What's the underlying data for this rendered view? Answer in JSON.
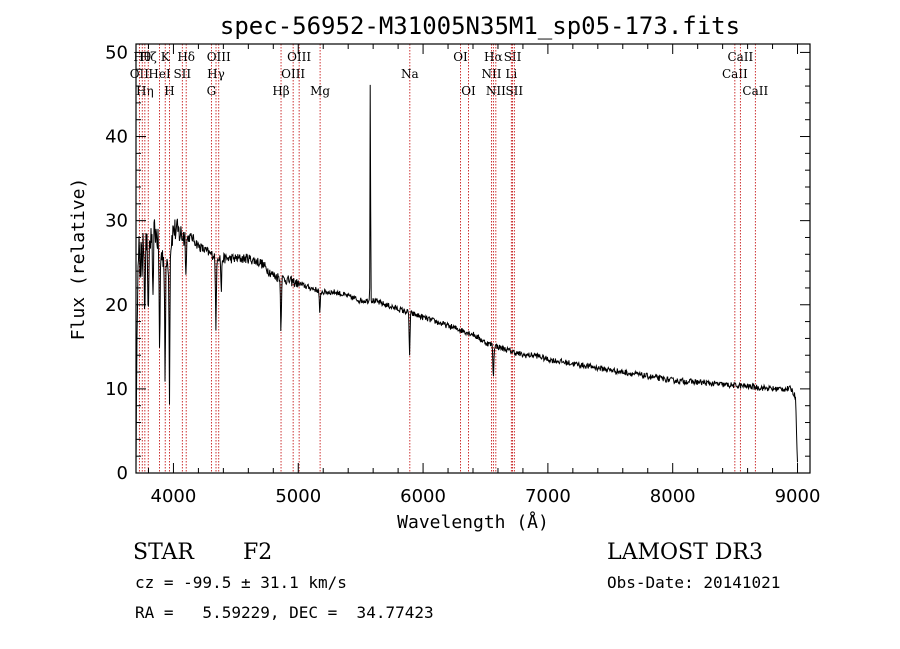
{
  "chart_data": {
    "type": "line",
    "title": "spec-56952-M31005N35M1_sp05-173.fits",
    "xlabel": "Wavelength (Å)",
    "ylabel": "Flux (relative)",
    "xlim": [
      3700,
      9100
    ],
    "ylim": [
      0,
      51
    ],
    "xticks": [
      4000,
      5000,
      6000,
      7000,
      8000,
      9000
    ],
    "yticks": [
      0,
      10,
      20,
      30,
      40,
      50
    ],
    "tick_labels_x": [
      "4000",
      "5000",
      "6000",
      "7000",
      "8000",
      "9000"
    ],
    "tick_labels_y": [
      "0",
      "10",
      "20",
      "30",
      "40",
      "50"
    ],
    "spectrum_anchors": [
      [
        3700,
        2
      ],
      [
        3715,
        26
      ],
      [
        3740,
        30
      ],
      [
        3760,
        28
      ],
      [
        3800,
        27
      ],
      [
        3850,
        29
      ],
      [
        3900,
        26
      ],
      [
        3950,
        25
      ],
      [
        4000,
        29
      ],
      [
        4050,
        28.5
      ],
      [
        4100,
        28
      ],
      [
        4150,
        28
      ],
      [
        4200,
        27
      ],
      [
        4300,
        26
      ],
      [
        4400,
        25.5
      ],
      [
        4500,
        25.5
      ],
      [
        4600,
        25.5
      ],
      [
        4700,
        25
      ],
      [
        4800,
        23.5
      ],
      [
        4900,
        23
      ],
      [
        5000,
        22.5
      ],
      [
        5100,
        22
      ],
      [
        5200,
        21.5
      ],
      [
        5300,
        21.5
      ],
      [
        5400,
        21
      ],
      [
        5500,
        20.5
      ],
      [
        5600,
        20.5
      ],
      [
        5700,
        20
      ],
      [
        5800,
        19.5
      ],
      [
        5900,
        19
      ],
      [
        6000,
        18.5
      ],
      [
        6100,
        18
      ],
      [
        6200,
        17.5
      ],
      [
        6300,
        17
      ],
      [
        6400,
        16.5
      ],
      [
        6500,
        15.5
      ],
      [
        6600,
        15
      ],
      [
        6700,
        14.5
      ],
      [
        6800,
        14
      ],
      [
        6900,
        14
      ],
      [
        7000,
        13.5
      ],
      [
        7200,
        13
      ],
      [
        7400,
        12.5
      ],
      [
        7600,
        12
      ],
      [
        7800,
        11.5
      ],
      [
        8000,
        11
      ],
      [
        8200,
        10.8
      ],
      [
        8400,
        10.5
      ],
      [
        8600,
        10.3
      ],
      [
        8800,
        10
      ],
      [
        8950,
        10
      ],
      [
        8985,
        9
      ],
      [
        9000,
        1
      ]
    ],
    "absorption_features": [
      [
        3734,
        8
      ],
      [
        3750,
        6
      ],
      [
        3770,
        8
      ],
      [
        3798,
        10
      ],
      [
        3835,
        9
      ],
      [
        3889,
        13
      ],
      [
        3933,
        14
      ],
      [
        3968,
        17
      ],
      [
        4101,
        4
      ],
      [
        4340,
        9
      ],
      [
        4383,
        4
      ],
      [
        4861,
        6
      ],
      [
        5173,
        3
      ],
      [
        5892,
        5
      ],
      [
        6563,
        4
      ]
    ],
    "emission_features": [
      [
        5577,
        29
      ]
    ],
    "line_markers": [
      {
        "wavelength": 3727,
        "label": "OII",
        "row": 2
      },
      {
        "wavelength": 3750,
        "label": "Hθ",
        "row": 1
      },
      {
        "wavelength": 3771,
        "label": "Hη",
        "row": 3
      },
      {
        "wavelength": 3798,
        "label": "Hζ",
        "row": 1
      },
      {
        "wavelength": 3889,
        "label": "HeI",
        "row": 2
      },
      {
        "wavelength": 3934,
        "label": "K",
        "row": 1
      },
      {
        "wavelength": 3968,
        "label": "H",
        "row": 3
      },
      {
        "wavelength": 4071,
        "label": "SII",
        "row": 2
      },
      {
        "wavelength": 4102,
        "label": "Hδ",
        "row": 1
      },
      {
        "wavelength": 4304,
        "label": "G",
        "row": 3
      },
      {
        "wavelength": 4341,
        "label": "Hγ",
        "row": 2
      },
      {
        "wavelength": 4363,
        "label": "OIII",
        "row": 1
      },
      {
        "wavelength": 4862,
        "label": "Hβ",
        "row": 3
      },
      {
        "wavelength": 4959,
        "label": "OIII",
        "row": 2
      },
      {
        "wavelength": 5007,
        "label": "OIII",
        "row": 1
      },
      {
        "wavelength": 5175,
        "label": "Mg",
        "row": 3
      },
      {
        "wavelength": 5894,
        "label": "Na",
        "row": 2
      },
      {
        "wavelength": 6300,
        "label": "OI",
        "row": 1
      },
      {
        "wavelength": 6364,
        "label": "OI",
        "row": 3
      },
      {
        "wavelength": 6548,
        "label": "NII",
        "row": 2
      },
      {
        "wavelength": 6563,
        "label": "Hα",
        "row": 1
      },
      {
        "wavelength": 6583,
        "label": "NII",
        "row": 3
      },
      {
        "wavelength": 6707,
        "label": "Li",
        "row": 2
      },
      {
        "wavelength": 6717,
        "label": "SII",
        "row": 1
      },
      {
        "wavelength": 6731,
        "label": "SII",
        "row": 3
      },
      {
        "wavelength": 8498,
        "label": "CaII",
        "row": 2
      },
      {
        "wavelength": 8542,
        "label": "CaII",
        "row": 1
      },
      {
        "wavelength": 8662,
        "label": "CaII",
        "row": 3
      }
    ]
  },
  "info": {
    "object_class": "STAR",
    "subclass": "F2",
    "survey": "LAMOST DR3",
    "redshift_line": "cz = -99.5 ± 31.1 km/s",
    "obs_date_line": "Obs-Date: 20141021",
    "coords_line": "RA =   5.59229, DEC =  34.77423"
  },
  "colors": {
    "spectrum": "#000000",
    "line_marker": "#c00000",
    "axes": "#000000"
  }
}
